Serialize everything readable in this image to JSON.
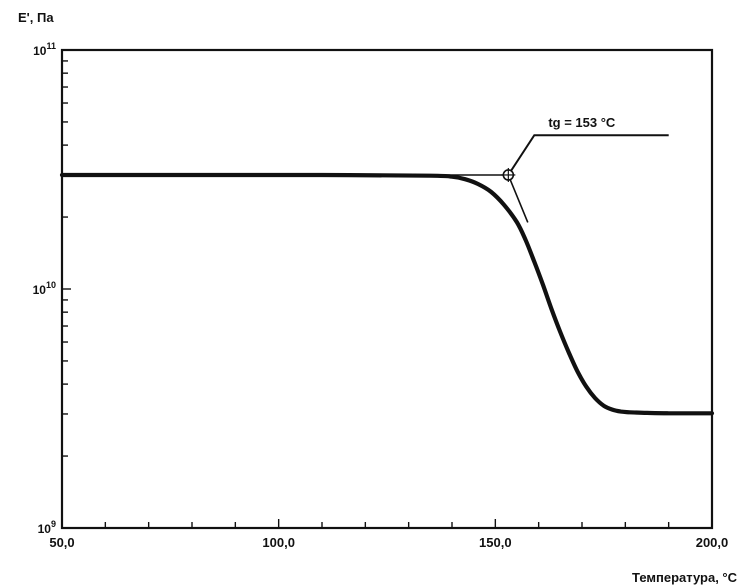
{
  "chart_data": {
    "type": "line",
    "ylabel": "E', Па",
    "xlabel": "Температура, °C",
    "xlim": [
      50,
      200
    ],
    "ylim": [
      1000000000,
      100000000000
    ],
    "y_scale": "log",
    "grid": false,
    "x_ticks": [
      {
        "value": 50,
        "label": "50,0"
      },
      {
        "value": 100,
        "label": "100,0"
      },
      {
        "value": 150,
        "label": "150,0"
      },
      {
        "value": 200,
        "label": "200,0"
      }
    ],
    "y_ticks": [
      {
        "value": 1000000000,
        "base": "10",
        "exp": "9"
      },
      {
        "value": 10000000000,
        "base": "10",
        "exp": "10"
      },
      {
        "value": 100000000000,
        "base": "10",
        "exp": "11"
      }
    ],
    "series": [
      {
        "x": [
          50,
          80,
          110,
          135,
          140,
          143,
          146,
          149,
          152,
          155,
          157,
          159,
          161,
          163,
          165,
          167,
          169,
          171,
          173,
          175,
          177,
          179,
          181,
          185,
          190,
          195,
          200
        ],
        "y": [
          30000000000,
          30000000000,
          30000000000,
          29800000000,
          29500000000,
          28800000000,
          27500000000,
          25500000000,
          22500000000,
          19000000000,
          16000000000,
          13000000000,
          10400000000,
          8200000000,
          6600000000,
          5400000000,
          4500000000,
          3900000000,
          3500000000,
          3250000000,
          3130000000,
          3070000000,
          3050000000,
          3030000000,
          3020000000,
          3020000000,
          3020000000
        ]
      }
    ],
    "tangents": [
      {
        "x": [
          50,
          153
        ],
        "y": [
          30000000000,
          30000000000
        ]
      },
      {
        "x": [
          153,
          157.5
        ],
        "y": [
          30000000000,
          19000000000
        ]
      }
    ],
    "annotation": {
      "text": "tg = 153 °C",
      "point": {
        "x": 153,
        "y": 30000000000
      },
      "leader": {
        "x": [
          153,
          159,
          190
        ],
        "y": [
          30000000000,
          44000000000,
          44000000000
        ]
      }
    }
  }
}
